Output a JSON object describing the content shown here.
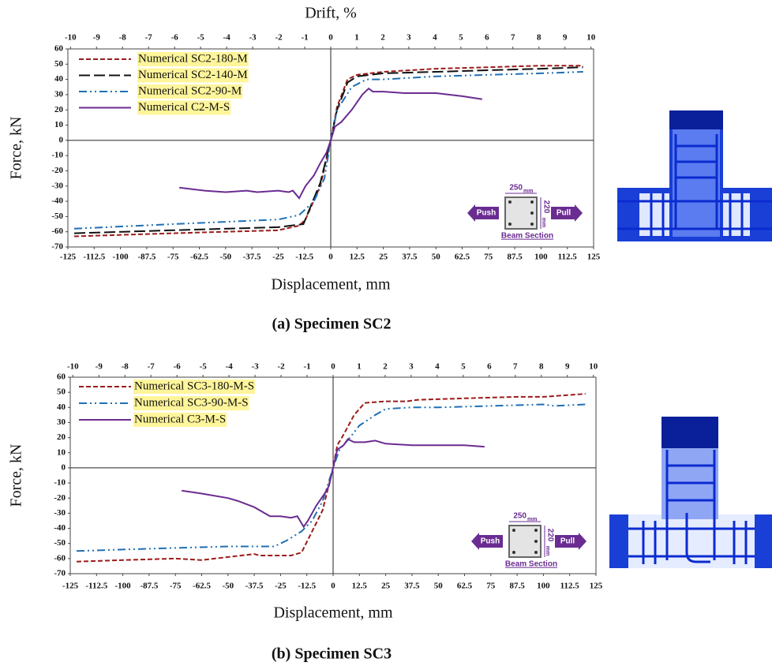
{
  "chart_data": [
    {
      "type": "line",
      "caption": "(a) Specimen SC2",
      "x2_title": "Drift, %",
      "y_title": "Force, kN",
      "x_title": "Displacement, mm",
      "xlim": [
        -125,
        125
      ],
      "xticks": [
        -125,
        -112.5,
        -100,
        -87.5,
        -75,
        -62.5,
        -50,
        -37.5,
        -25,
        -12.5,
        0,
        12.5,
        25,
        37.5,
        50,
        62.5,
        75,
        87.5,
        100,
        112.5,
        125
      ],
      "x2lim": [
        -10.1,
        10.1
      ],
      "x2ticks": [
        -10,
        -9,
        -8,
        -7,
        -6,
        -5,
        -4,
        -3,
        -2,
        -1,
        0,
        1,
        2,
        3,
        4,
        5,
        6,
        7,
        8,
        9,
        10
      ],
      "ylim": [
        -70,
        60
      ],
      "yticks": [
        -70,
        -60,
        -50,
        -40,
        -30,
        -20,
        -10,
        0,
        10,
        20,
        30,
        40,
        50,
        60
      ],
      "grid": false,
      "section": {
        "width": "250",
        "width_unit": "mm",
        "height": "220",
        "height_unit": "mm",
        "push": "Push",
        "pull": "Pull",
        "name": "Beam Section"
      },
      "series": [
        {
          "name": "Numerical SC2-180-M",
          "color": "#9b1b1b",
          "style": "dashed",
          "x": [
            -122,
            -75,
            -25,
            -15,
            -12,
            -5,
            0,
            3,
            8,
            12.5,
            25,
            50,
            75,
            100,
            120
          ],
          "values": [
            -63,
            -61,
            -59,
            -56,
            -52,
            -30,
            0,
            22,
            40,
            43,
            45,
            47,
            48,
            49,
            49
          ]
        },
        {
          "name": "Numerical SC2-140-M",
          "color": "#111111",
          "style": "longdash",
          "x": [
            -122,
            -75,
            -25,
            -13,
            -5,
            0,
            3,
            8,
            12.5,
            25,
            50,
            75,
            100,
            120
          ],
          "values": [
            -61,
            -59,
            -57,
            -55,
            -28,
            0,
            20,
            38,
            42,
            44,
            45,
            46,
            47,
            48
          ]
        },
        {
          "name": "Numerical SC2-90-M",
          "color": "#1f6fb5",
          "style": "dashdot",
          "x": [
            -122,
            -75,
            -25,
            -15,
            -8,
            -3,
            0,
            3,
            10,
            17,
            25,
            50,
            75,
            100,
            120
          ],
          "values": [
            -58,
            -55,
            -52,
            -49,
            -40,
            -25,
            0,
            20,
            35,
            40,
            40,
            42,
            43,
            44,
            45
          ]
        },
        {
          "name": "Numerical C2-M-S",
          "color": "#6a2c91",
          "style": "solid",
          "x": [
            -72,
            -60,
            -50,
            -40,
            -35,
            -25,
            -20,
            -18,
            -15,
            -12,
            -8,
            -5,
            -2,
            0,
            2,
            5,
            10,
            15,
            18,
            20,
            25,
            35,
            50,
            62.5,
            72
          ],
          "values": [
            -31,
            -33,
            -34,
            -33,
            -34,
            -33,
            -34,
            -33,
            -38,
            -30,
            -23,
            -15,
            -8,
            0,
            9,
            12,
            20,
            30,
            34,
            32,
            32,
            31,
            31,
            29,
            27
          ]
        }
      ]
    },
    {
      "type": "line",
      "caption": "(b) Specimen SC3",
      "y_title": "Force, kN",
      "x_title": "Displacement, mm",
      "xlim": [
        -125,
        125
      ],
      "xticks": [
        -125,
        -112.5,
        -100,
        -87.5,
        -75,
        -62.5,
        -50,
        -37.5,
        -25,
        -12.5,
        0,
        12.5,
        25,
        37.5,
        50,
        62.5,
        75,
        87.5,
        100,
        112.5,
        125
      ],
      "x2lim": [
        -10.1,
        10.1
      ],
      "x2ticks": [
        -10,
        -9,
        -8,
        -7,
        -6,
        -5,
        -4,
        -3,
        -2,
        -1,
        0,
        1,
        2,
        3,
        4,
        5,
        6,
        7,
        8,
        9,
        10
      ],
      "ylim": [
        -70,
        60
      ],
      "yticks": [
        -70,
        -60,
        -50,
        -40,
        -30,
        -20,
        -10,
        0,
        10,
        20,
        30,
        40,
        50,
        60
      ],
      "grid": false,
      "section": {
        "width": "250",
        "width_unit": "mm",
        "height": "220",
        "height_unit": "mm",
        "push": "Push",
        "pull": "Pull",
        "name": "Beam Section"
      },
      "series": [
        {
          "name": "Numerical SC3-180-M-S",
          "color": "#9b1b1b",
          "style": "dashed",
          "x": [
            -122,
            -100,
            -75,
            -62.5,
            -50,
            -37.5,
            -35,
            -25,
            -20,
            -15,
            -10,
            -5,
            0,
            2,
            5,
            10,
            15,
            25,
            35,
            40,
            62.5,
            87.5,
            100,
            120
          ],
          "values": [
            -62,
            -61,
            -60,
            -61,
            -59,
            -57,
            -58,
            -58,
            -58,
            -56,
            -42,
            -28,
            0,
            15,
            22,
            35,
            43,
            44,
            44,
            45,
            46,
            47,
            47,
            49
          ]
        },
        {
          "name": "Numerical SC3-90-M-S",
          "color": "#1f6fb5",
          "style": "dashdot",
          "x": [
            -122,
            -100,
            -75,
            -50,
            -37.5,
            -28,
            -22,
            -15,
            -10,
            -5,
            0,
            3,
            8,
            12.5,
            20,
            25,
            37.5,
            50,
            75,
            100,
            105,
            120
          ],
          "values": [
            -55,
            -54,
            -53,
            -52,
            -52,
            -52,
            -48,
            -42,
            -35,
            -22,
            0,
            12,
            20,
            28,
            35,
            39,
            40,
            40,
            41,
            42,
            41,
            42
          ]
        },
        {
          "name": "Numerical C3-M-S",
          "color": "#6a2c91",
          "style": "solid",
          "x": [
            -72,
            -62.5,
            -50,
            -45,
            -37.5,
            -30,
            -25,
            -20,
            -17,
            -14,
            -12,
            -8,
            -4,
            -2,
            0,
            2,
            5,
            7,
            10,
            15,
            20,
            25,
            37.5,
            50,
            62.5,
            72
          ],
          "values": [
            -15,
            -17,
            -20,
            -22,
            -26,
            -32,
            -32,
            -33,
            -32,
            -39,
            -35,
            -25,
            -17,
            -12,
            0,
            12,
            15,
            19,
            17,
            17,
            18,
            16,
            15,
            15,
            15,
            14
          ]
        }
      ]
    }
  ]
}
